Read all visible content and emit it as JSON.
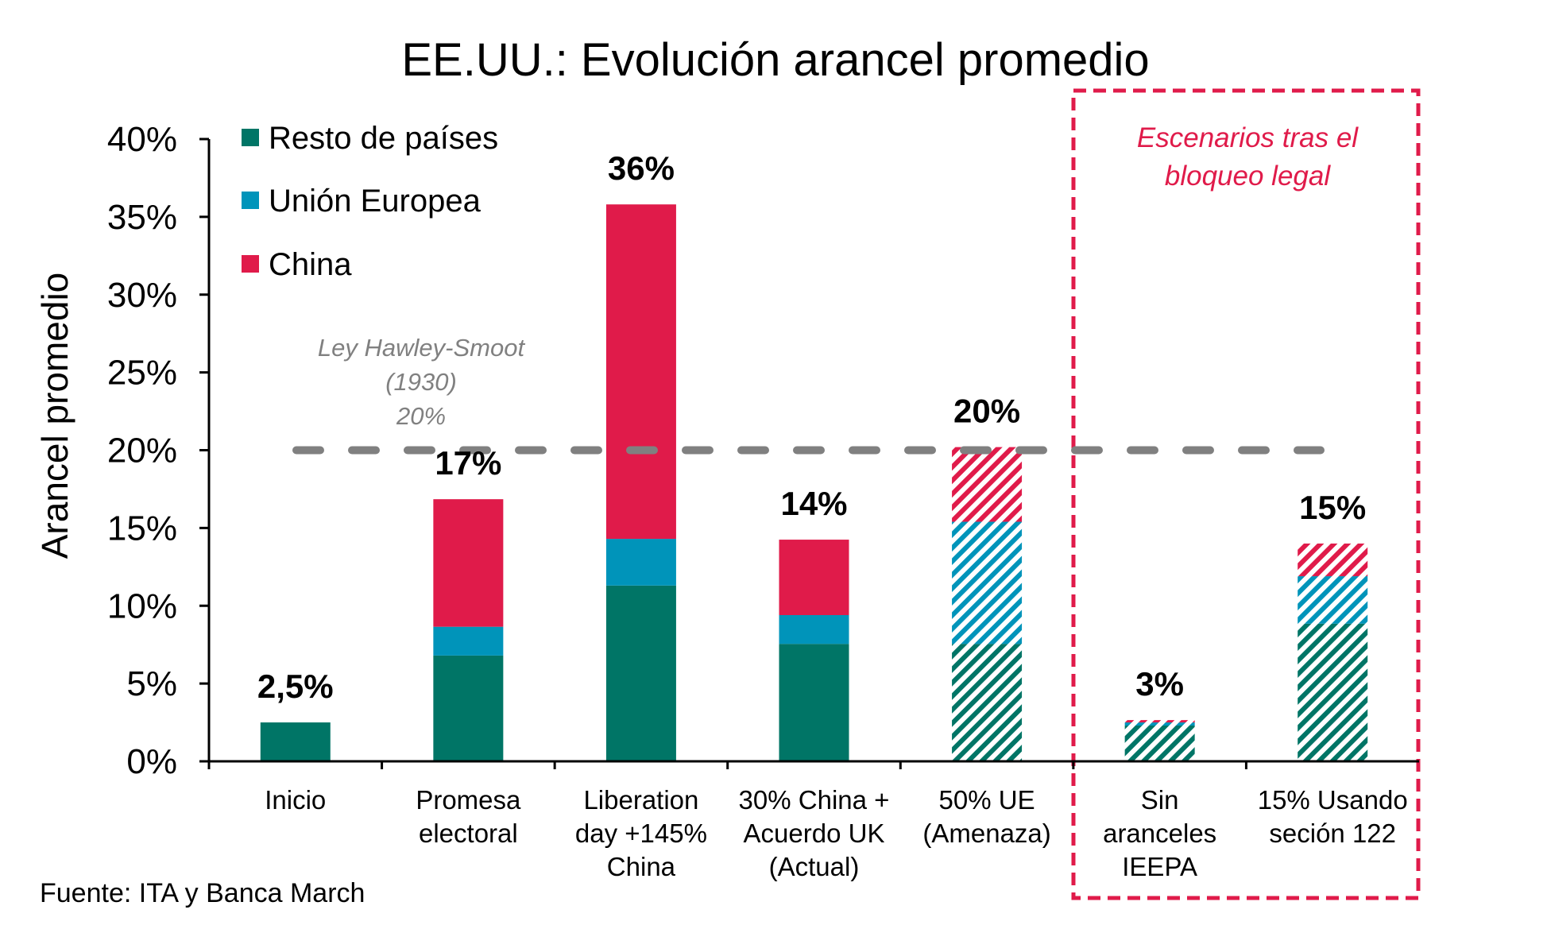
{
  "chart_data": {
    "type": "bar",
    "stacked": true,
    "title": "EE.UU.: Evolución arancel promedio",
    "xlabel": "",
    "ylabel": "Arancel promedio",
    "ylim": [
      0,
      40
    ],
    "yticks": [
      0,
      5,
      10,
      15,
      20,
      25,
      30,
      35,
      40
    ],
    "ytick_labels": [
      "0%",
      "5%",
      "10%",
      "15%",
      "20%",
      "25%",
      "30%",
      "35%",
      "40%"
    ],
    "grid": false,
    "legend_position": "top-left",
    "categories": [
      [
        "Inicio"
      ],
      [
        "Promesa",
        "electoral"
      ],
      [
        "Liberation",
        "day +145%",
        "China"
      ],
      [
        "30% China +",
        "Acuerdo UK",
        "(Actual)"
      ],
      [
        "50% UE",
        "(Amenaza)"
      ],
      [
        "Sin",
        "aranceles",
        "IEEPA"
      ],
      [
        "15% Usando",
        "seción 122"
      ]
    ],
    "series": [
      {
        "name": "Resto de países",
        "color": "#007566",
        "values": [
          2.5,
          6.8,
          11.3,
          7.55,
          7.55,
          2.3,
          8.85
        ]
      },
      {
        "name": "Unión Europea",
        "color": "#0094BA",
        "values": [
          0,
          1.85,
          3.0,
          1.85,
          7.85,
          0.2,
          3.05
        ]
      },
      {
        "name": "China",
        "color": "#E01B4A",
        "values": [
          0,
          8.2,
          21.5,
          4.85,
          4.8,
          0.15,
          2.1
        ]
      }
    ],
    "hatched": [
      false,
      false,
      false,
      false,
      true,
      true,
      true
    ],
    "data_labels": [
      "2,5%",
      "17%",
      "36%",
      "14%",
      "20%",
      "3%",
      "15%"
    ],
    "reference_line": {
      "value": 20,
      "color": "#808080",
      "style": "dashed",
      "label": [
        "Ley Hawley-Smoot",
        "(1930)",
        "20%"
      ]
    },
    "highlight_region": {
      "categories": [
        "Sin aranceles IEEPA",
        "15% Usando seción 122"
      ],
      "label": [
        "Escenarios tras el",
        "bloqueo legal"
      ],
      "color": "#E01B4A",
      "style": "dashed"
    },
    "source": "Fuente: ITA y Banca March"
  }
}
